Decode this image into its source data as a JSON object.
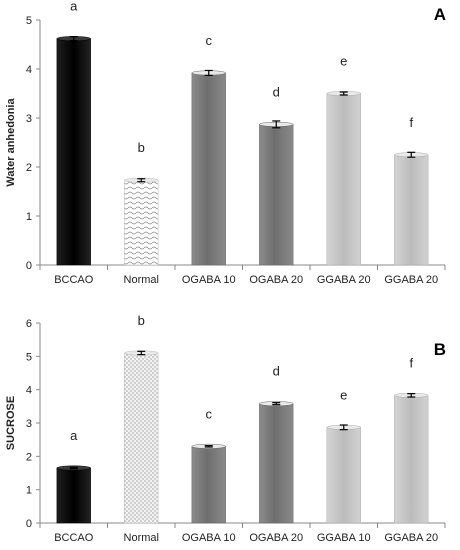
{
  "chart_data": [
    {
      "type": "bar",
      "panel_label": "A",
      "ylabel": "Water anhedonia",
      "ylim": [
        0,
        5
      ],
      "yticks": [
        "0",
        "1",
        "2",
        "3",
        "4",
        "5"
      ],
      "categories": [
        "BCCAO",
        "Normal",
        "OGABA 10",
        "OGABA 20",
        "GGABA 20",
        "GGABA 20"
      ],
      "values": [
        4.62,
        1.73,
        3.92,
        2.87,
        3.5,
        2.25
      ],
      "errors": [
        0.04,
        0.03,
        0.05,
        0.07,
        0.03,
        0.05
      ],
      "letters": [
        "a",
        "b",
        "c",
        "d",
        "e",
        "f"
      ],
      "fills": [
        "black",
        "wavy",
        "dark-gray",
        "dark-gray",
        "light-gray",
        "light-gray"
      ],
      "grid": false
    },
    {
      "type": "bar",
      "panel_label": "B",
      "ylabel": "SUCROSE",
      "ylim": [
        0,
        6
      ],
      "yticks": [
        "0",
        "1",
        "2",
        "3",
        "4",
        "5",
        "6"
      ],
      "categories": [
        "BCCAO",
        "Normal",
        "OGABA 10",
        "OGABA 20",
        "GGABA 10",
        "GGABA 20"
      ],
      "values": [
        1.65,
        5.1,
        2.3,
        3.58,
        2.87,
        3.83
      ],
      "errors": [
        0.02,
        0.05,
        0.02,
        0.03,
        0.07,
        0.05
      ],
      "letters": [
        "a",
        "b",
        "c",
        "d",
        "e",
        "f"
      ],
      "fills": [
        "black",
        "dotted",
        "dark-gray",
        "dark-gray",
        "light-gray",
        "light-gray"
      ],
      "grid": false
    }
  ]
}
